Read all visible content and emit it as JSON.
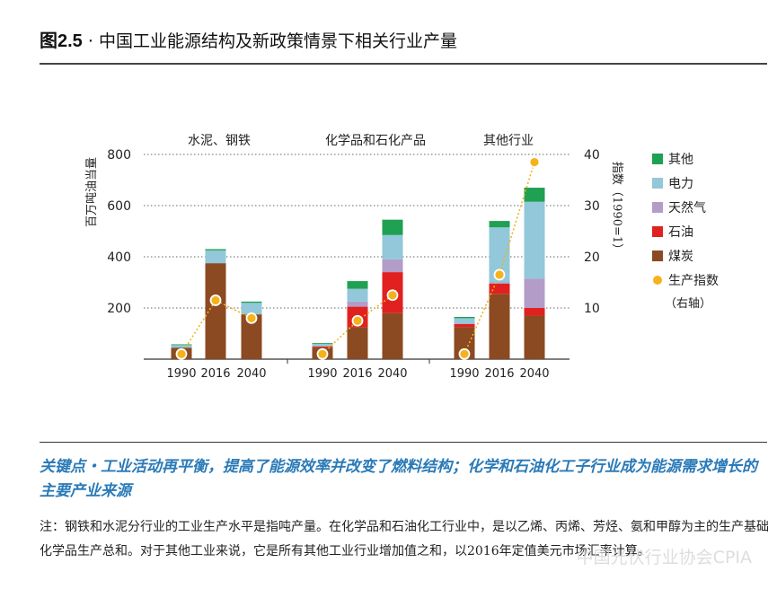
{
  "figure": {
    "number": "图2.5",
    "separator": "·",
    "title": "中国工业能源结构及新政策情景下相关行业产量"
  },
  "chart_data": {
    "type": "bar",
    "stacked": true,
    "panels": [
      "水泥、钢铁",
      "化学品和石化产品",
      "其他行业"
    ],
    "categories": [
      "1990",
      "2016",
      "2040"
    ],
    "left_axis": {
      "label": "百万吨油当量",
      "range": [
        0,
        800
      ],
      "ticks": [
        200,
        400,
        600,
        800
      ]
    },
    "right_axis": {
      "label": "指数（1990=1）",
      "range": [
        0,
        40
      ],
      "ticks": [
        10,
        20,
        30,
        40
      ]
    },
    "grid": "dotted horizontal",
    "legend_position": "right",
    "series": [
      {
        "name": "煤炭",
        "color": "#8b4a22",
        "values": [
          [
            45,
            375,
            175
          ],
          [
            45,
            125,
            180
          ],
          [
            125,
            255,
            170
          ]
        ]
      },
      {
        "name": "石油",
        "color": "#e0211f",
        "values": [
          [
            0,
            0,
            0
          ],
          [
            5,
            80,
            160
          ],
          [
            12,
            40,
            30
          ]
        ]
      },
      {
        "name": "天然气",
        "color": "#b39cc7",
        "values": [
          [
            0,
            0,
            0
          ],
          [
            0,
            20,
            50
          ],
          [
            3,
            5,
            115
          ]
        ]
      },
      {
        "name": "电力",
        "color": "#92c8d9",
        "values": [
          [
            10,
            50,
            45
          ],
          [
            10,
            50,
            95
          ],
          [
            20,
            215,
            300
          ]
        ]
      },
      {
        "name": "其他",
        "color": "#20a052",
        "values": [
          [
            3,
            5,
            5
          ],
          [
            3,
            30,
            60
          ],
          [
            5,
            25,
            55
          ]
        ]
      }
    ],
    "index_series": {
      "name": "生产指数",
      "name_suffix": "（右轴）",
      "axis": "right",
      "color": "#f5b21a",
      "values": [
        [
          1,
          11.5,
          8
        ],
        [
          1,
          7.5,
          12.5
        ],
        [
          1,
          16.5,
          38.5
        ]
      ]
    }
  },
  "key_point": "关键点・工业活动再平衡，提高了能源效率并改变了燃料结构；化学和石油化工子行业成为能源需求增长的主要产业来源",
  "note": "注：钢铁和水泥分行业的工业生产水平是指吨产量。在化学品和石油化工行业中，是以乙烯、丙烯、芳烃、氨和甲醇为主的生产基础化学品生产总和。对于其他工业来说，它是所有其他工业行业增加值之和，以2016年定值美元市场汇率计算。",
  "watermark": "中国光伏行业协会CPIA"
}
